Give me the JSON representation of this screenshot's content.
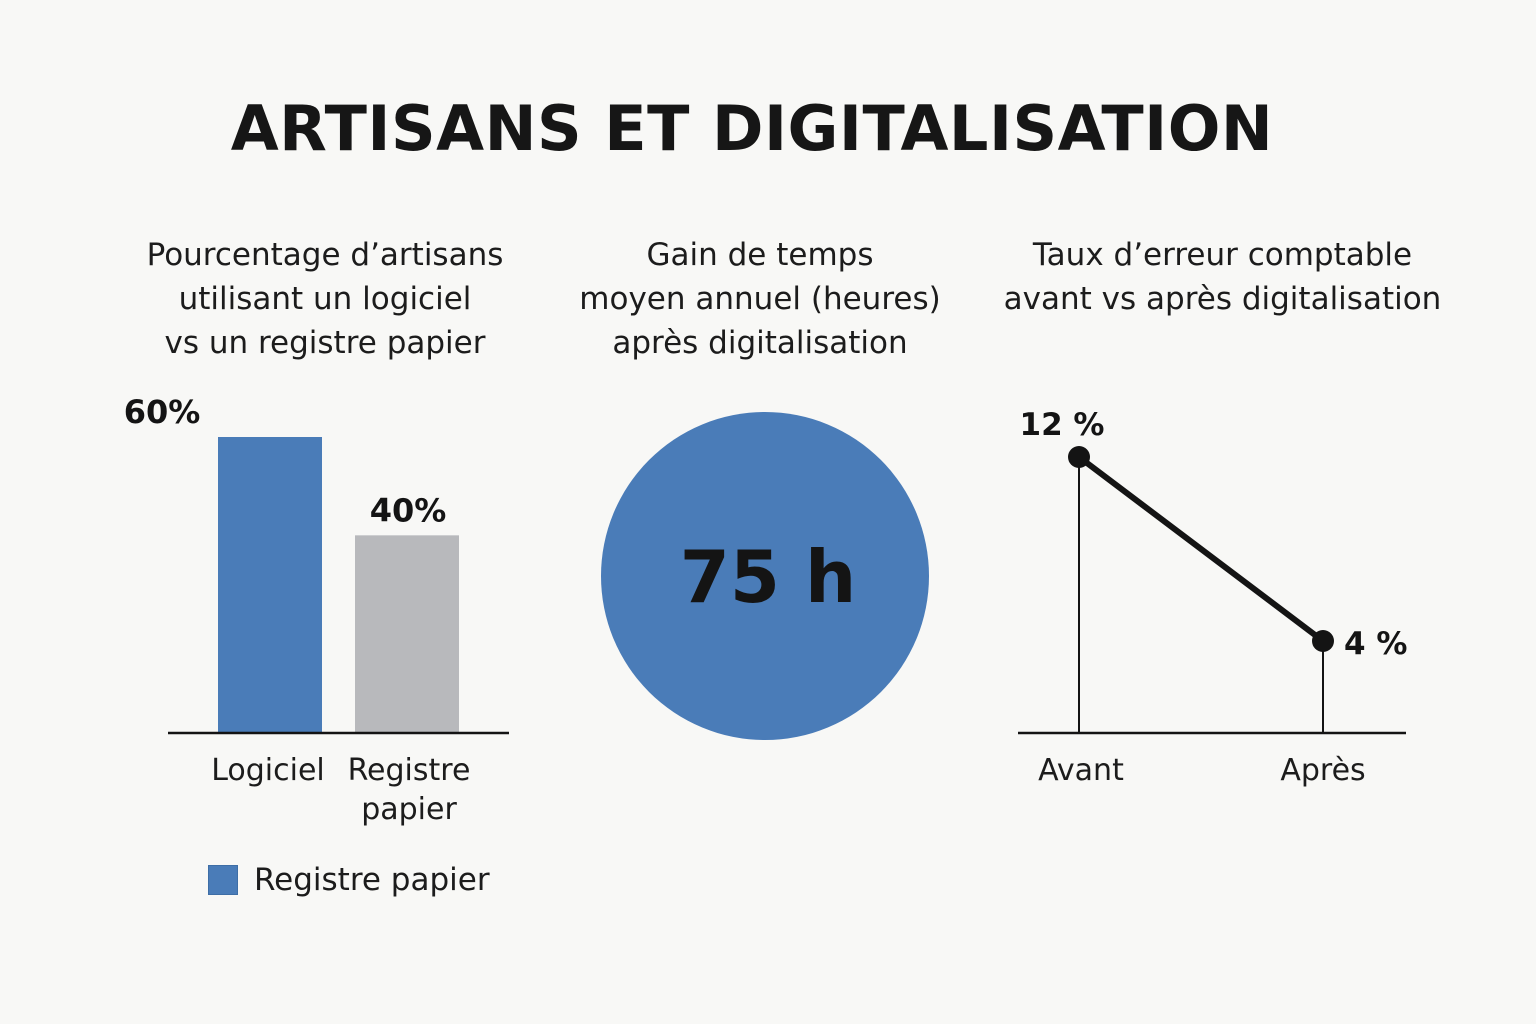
{
  "title": "ARTISANS ET DIGITALISATION",
  "colors": {
    "blue": "#4a7cb8",
    "gray": "#b8b9bc",
    "ink": "#141414"
  },
  "panels": {
    "software_vs_paper": {
      "title_lines": [
        "Pourcentage d’artisans",
        "utilisant un logiciel",
        "vs un registre papier"
      ],
      "legend_label": "Registre papier"
    },
    "time_saved": {
      "title_lines": [
        "Gain de temps",
        "moyen annuel (heures)",
        "après digitalisation"
      ]
    },
    "error_rate": {
      "title_lines": [
        "Taux d’erreur comptable",
        "avant vs après digitalisation"
      ]
    }
  },
  "chart_data": [
    {
      "type": "bar",
      "title": "Pourcentage d’artisans utilisant un logiciel vs un registre papier",
      "categories": [
        "Logiciel",
        "Registre papier"
      ],
      "category_label_lines": [
        [
          "Logiciel"
        ],
        [
          "Registre",
          "papier"
        ]
      ],
      "values": [
        60,
        40
      ],
      "value_labels": [
        "60%",
        "40%"
      ],
      "unit": "%",
      "ylim": [
        0,
        60
      ],
      "legend": [
        "Registre papier"
      ]
    },
    {
      "type": "table",
      "title": "Gain de temps moyen annuel (heures) après digitalisation",
      "value": 75,
      "unit": "h",
      "label": "75 h"
    },
    {
      "type": "line",
      "title": "Taux d’erreur comptable avant vs après digitalisation",
      "categories": [
        "Avant",
        "Après"
      ],
      "values": [
        12,
        4
      ],
      "value_labels": [
        "12 %",
        "4 %"
      ],
      "unit": "%",
      "ylim": [
        0,
        12
      ]
    }
  ]
}
